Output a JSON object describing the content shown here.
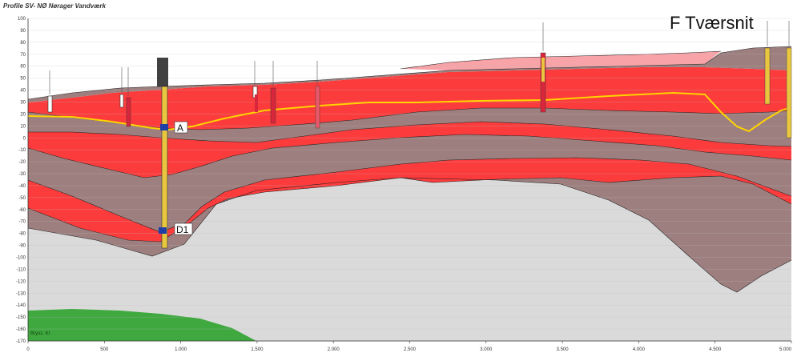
{
  "title": "Profile SV- NØ Nørager Vandværk",
  "section_label": "F Tværsnit",
  "y_axis": {
    "ticks": [
      "100",
      "90",
      "80",
      "70",
      "60",
      "50",
      "40",
      "30",
      "20",
      "10",
      "0",
      "-10",
      "-20",
      "-30",
      "-40",
      "-50",
      "-60",
      "-70",
      "-80",
      "-90",
      "-100",
      "-110",
      "-120",
      "-130",
      "-140",
      "-150",
      "-160",
      "-170"
    ],
    "range": [
      -170,
      100
    ]
  },
  "x_axis": {
    "ticks": [
      "0",
      "500",
      "1.000",
      "1.500",
      "2.000",
      "2.500",
      "3.000",
      "3.500",
      "4.000",
      "4.500",
      "5.000"
    ],
    "range": [
      0,
      5000
    ]
  },
  "markers": [
    {
      "label": "A"
    },
    {
      "label": "D1"
    }
  ],
  "bottom_unit_label": "Bryoz. Kl",
  "colors": {
    "sand": "#fc3c3c",
    "clay": "#9e7f7f",
    "upper_light": "#f7a3a8",
    "chalk": "#dadada",
    "bryozoan_limestone": "#3fa83f",
    "water_table": "#ffd400",
    "boundary": "#222222",
    "grid": "#bdbdbd"
  }
}
